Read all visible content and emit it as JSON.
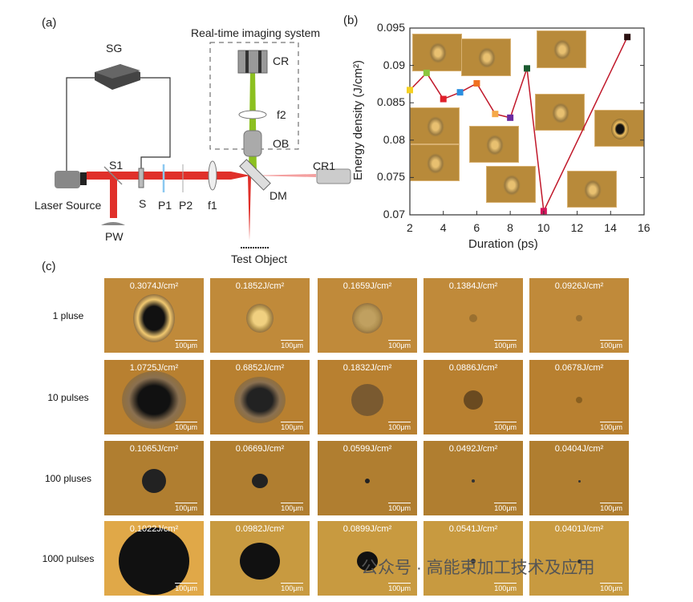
{
  "panel_a": {
    "label": "(a)",
    "imaging_system": "Real-time imaging system",
    "components": {
      "SG": "SG",
      "CR": "CR",
      "f2": "f2",
      "OB": "OB",
      "CR1": "CR1",
      "S1": "S1",
      "S": "S",
      "P1": "P1",
      "P2": "P2",
      "f1": "f1",
      "DM": "DM",
      "laser": "Laser Source",
      "PW": "PW",
      "test": "Test Object"
    }
  },
  "panel_b": {
    "label": "(b)"
  },
  "chart_data": {
    "type": "line",
    "xlabel": "Duration (ps)",
    "ylabel": "Energy density (J/cm²)",
    "xlim": [
      2,
      16
    ],
    "ylim": [
      0.07,
      0.095
    ],
    "xticks": [
      "2",
      "4",
      "6",
      "8",
      "10",
      "12",
      "14",
      "16"
    ],
    "yticks": [
      "0.07",
      "0.075",
      "0.08",
      "0.085",
      "0.09",
      "0.095"
    ],
    "x": [
      2,
      3,
      4,
      5,
      6,
      7.1,
      8,
      9,
      10,
      15
    ],
    "y": [
      0.0867,
      0.089,
      0.0855,
      0.0864,
      0.0876,
      0.0835,
      0.083,
      0.0896,
      0.0705,
      0.0938
    ],
    "marker_colors": [
      "#f5d020",
      "#8cc63f",
      "#e0202a",
      "#2a8fe0",
      "#f07020",
      "#f5a848",
      "#6a2aa0",
      "#1a5a30",
      "#d4145a",
      "#2a1010"
    ],
    "line_color": "#c0182a"
  },
  "panel_c": {
    "label": "(c)",
    "scale": "100μm",
    "rows": [
      {
        "label": "1 pluse",
        "values": [
          "0.3074J/cm²",
          "0.1852J/cm²",
          "0.1659J/cm²",
          "0.1384J/cm²",
          "0.0926J/cm²"
        ]
      },
      {
        "label": "10 pulses",
        "values": [
          "1.0725J/cm²",
          "0.6852J/cm²",
          "0.1832J/cm²",
          "0.0886J/cm²",
          "0.0678J/cm²"
        ]
      },
      {
        "label": "100 pluses",
        "values": [
          "0.1065J/cm²",
          "0.0669J/cm²",
          "0.0599J/cm²",
          "0.0492J/cm²",
          "0.0404J/cm²"
        ]
      },
      {
        "label": "1000 pulses",
        "values": [
          "0.1022J/cm²",
          "0.0982J/cm²",
          "0.0899J/cm²",
          "0.0541J/cm²",
          "0.0401J/cm²"
        ]
      }
    ]
  },
  "watermark": "公众号 · 高能束加工技术及应用"
}
